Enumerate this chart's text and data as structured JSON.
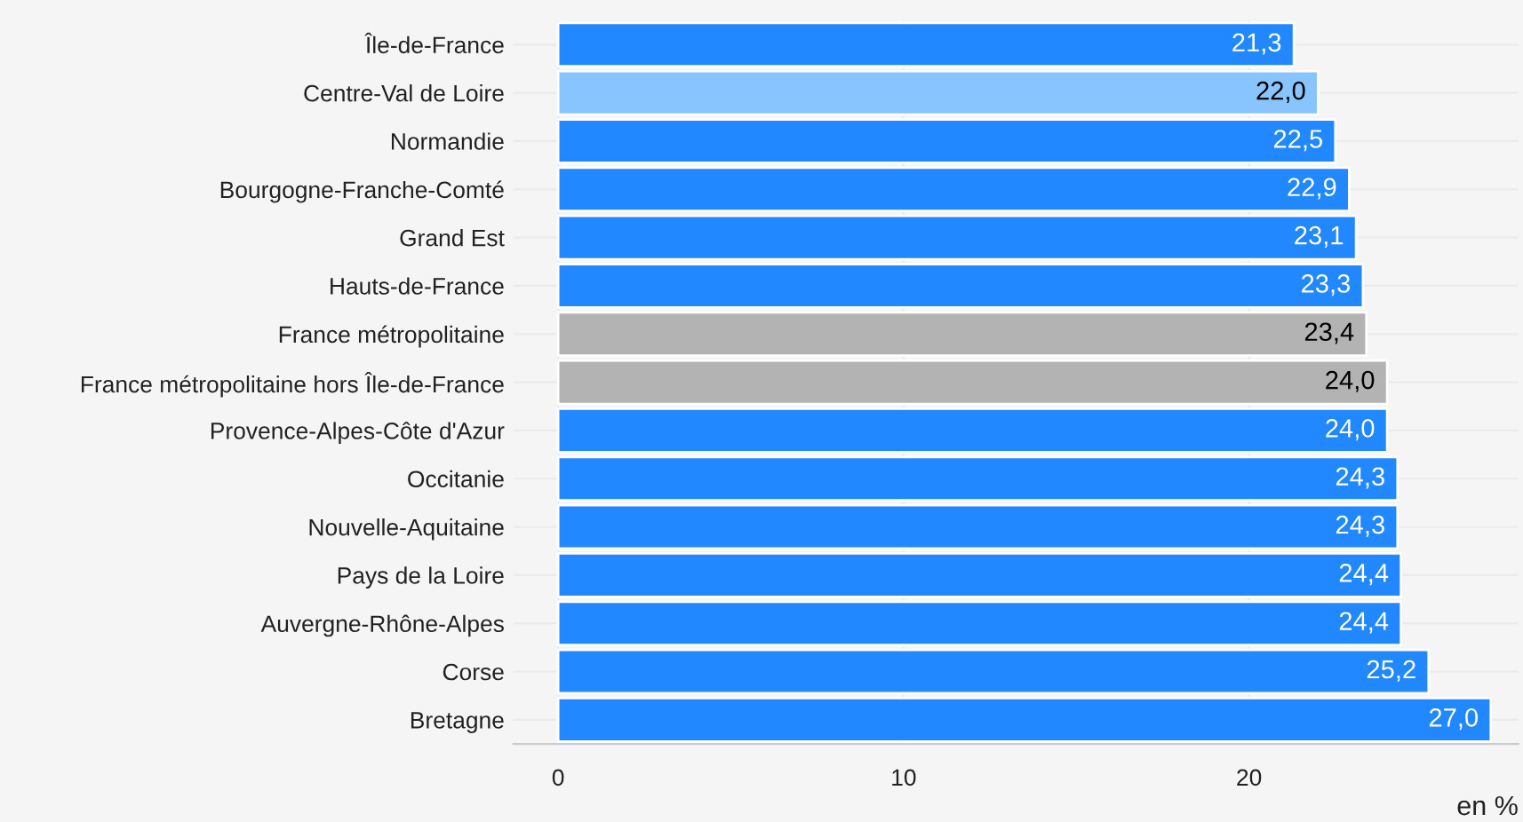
{
  "chart_data": {
    "type": "bar",
    "orientation": "horizontal",
    "xlabel": "en %",
    "categories": [
      "Île-de-France",
      "Centre-Val de Loire",
      "Normandie",
      "Bourgogne-Franche-Comté",
      "Grand Est",
      "Hauts-de-France",
      "France métropolitaine",
      "France métropolitaine hors Île-de-France",
      "Provence-Alpes-Côte d'Azur",
      "Occitanie",
      "Nouvelle-Aquitaine",
      "Pays de la Loire",
      "Auvergne-Rhône-Alpes",
      "Corse",
      "Bretagne"
    ],
    "values": [
      21.3,
      22.0,
      22.5,
      22.9,
      23.1,
      23.3,
      23.4,
      24.0,
      24.0,
      24.3,
      24.3,
      24.4,
      24.4,
      25.2,
      27.0
    ],
    "value_labels": [
      "21,3",
      "22,0",
      "22,5",
      "22,9",
      "23,1",
      "23,3",
      "23,4",
      "24,0",
      "24,0",
      "24,3",
      "24,3",
      "24,4",
      "24,4",
      "25,2",
      "27,0"
    ],
    "colors": [
      "#2288ff",
      "#88c4ff",
      "#2288ff",
      "#2288ff",
      "#2288ff",
      "#2288ff",
      "#b3b3b3",
      "#b3b3b3",
      "#2288ff",
      "#2288ff",
      "#2288ff",
      "#2288ff",
      "#2288ff",
      "#2288ff",
      "#2288ff"
    ],
    "xlim": [
      -1.3,
      27.8
    ],
    "xticks": [
      0,
      10,
      20
    ],
    "grid": true,
    "legend": false
  }
}
